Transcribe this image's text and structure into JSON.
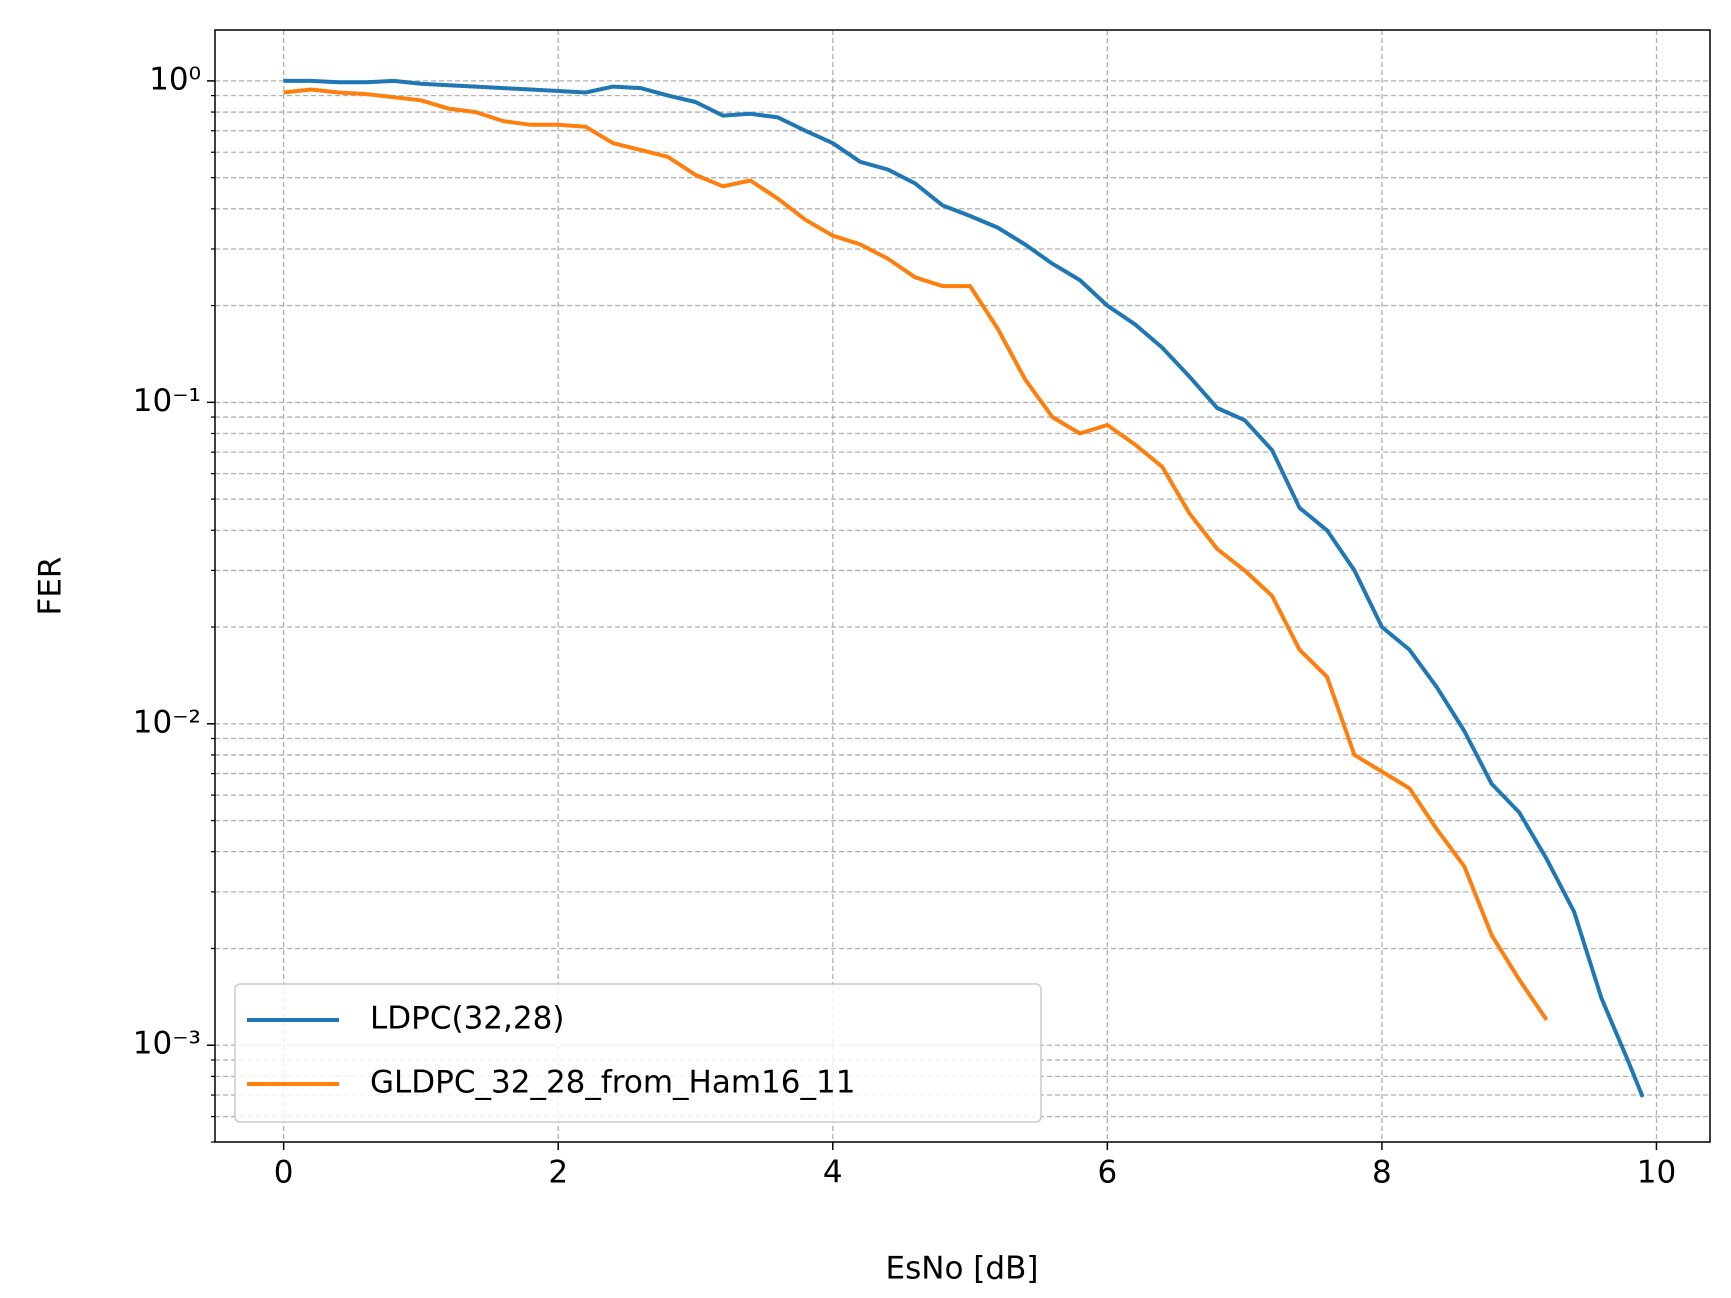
{
  "chart_data": {
    "type": "line",
    "xlabel": "EsNo [dB]",
    "ylabel": "FER",
    "x": [
      0,
      0.2,
      0.4,
      0.6,
      0.8,
      1.0,
      1.2,
      1.4,
      1.6,
      1.8,
      2.0,
      2.2,
      2.4,
      2.6,
      2.8,
      3.0,
      3.2,
      3.4,
      3.6,
      3.8,
      4.0,
      4.2,
      4.4,
      4.6,
      4.8,
      5.0,
      5.2,
      5.4,
      5.6,
      5.8,
      6.0,
      6.2,
      6.4,
      6.6,
      6.8,
      7.0,
      7.2,
      7.4,
      7.6,
      7.8,
      8.0,
      8.2,
      8.4,
      8.6,
      8.8,
      9.0,
      9.2,
      9.4,
      9.6,
      9.8,
      9.9
    ],
    "series": [
      {
        "name": "LDPC(32,28)",
        "color": "#1f77b4",
        "values": [
          1.0,
          1.0,
          0.99,
          0.99,
          1.0,
          0.98,
          0.97,
          0.96,
          0.95,
          0.94,
          0.93,
          0.92,
          0.96,
          0.95,
          0.9,
          0.86,
          0.78,
          0.79,
          0.77,
          0.7,
          0.64,
          0.56,
          0.53,
          0.48,
          0.41,
          0.38,
          0.35,
          0.31,
          0.27,
          0.24,
          0.2,
          0.175,
          0.148,
          0.12,
          0.096,
          0.088,
          0.071,
          0.047,
          0.04,
          0.03,
          0.02,
          0.017,
          0.013,
          0.0095,
          0.0065,
          0.0053,
          0.0038,
          0.0026,
          0.0014,
          0.00088,
          0.00069
        ]
      },
      {
        "name": "GLDPC_32_28_from_Ham16_11",
        "color": "#ff7f0e",
        "values": [
          0.92,
          0.94,
          0.92,
          0.91,
          0.89,
          0.87,
          0.82,
          0.8,
          0.75,
          0.73,
          0.73,
          0.72,
          0.64,
          0.61,
          0.58,
          0.51,
          0.47,
          0.49,
          0.43,
          0.37,
          0.33,
          0.31,
          0.28,
          0.245,
          0.23,
          0.23,
          0.17,
          0.118,
          0.09,
          0.08,
          0.085,
          0.074,
          0.063,
          0.045,
          0.035,
          0.03,
          0.025,
          0.017,
          0.014,
          0.008,
          0.0071,
          0.0063,
          0.0047,
          0.0036,
          0.0022,
          0.0016,
          0.0012,
          null,
          null,
          null,
          null
        ]
      }
    ],
    "xlim": [
      -0.5,
      10.39
    ],
    "xticks": [
      0,
      2,
      4,
      6,
      8,
      10
    ],
    "ylim": [
      0.0005,
      1.44
    ],
    "log_y": true,
    "yticks": [
      {
        "value": 1,
        "label": "10⁰"
      },
      {
        "value": 0.1,
        "label": "10⁻¹"
      },
      {
        "value": 0.01,
        "label": "10⁻²"
      },
      {
        "value": 0.001,
        "label": "10⁻³"
      }
    ],
    "grid": true,
    "minor_grid": true,
    "legend": "lower left"
  }
}
